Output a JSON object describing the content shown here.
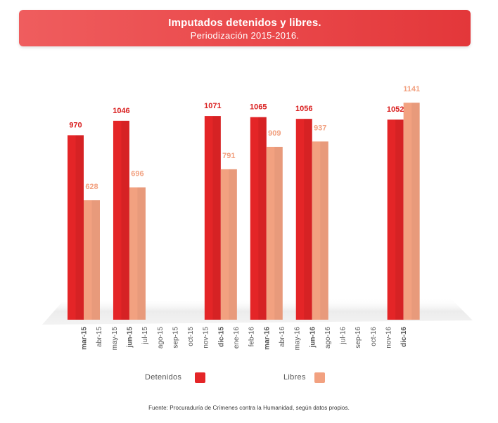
{
  "header": {
    "title": "Imputados detenidos y libres.",
    "subtitle": "Periodización 2015-2016."
  },
  "colors": {
    "detenidos": "#e42527",
    "libres": "#f2a180",
    "detenidos_label": "#d91e1e",
    "libres_label": "#f2a180"
  },
  "chart_data": {
    "type": "bar",
    "title": "Imputados detenidos y libres.",
    "subtitle": "Periodización 2015-2016.",
    "categories": [
      "mar-15",
      "abr-15",
      "may-15",
      "jun-15",
      "jul-15",
      "ago-15",
      "sep-15",
      "oct-15",
      "nov-15",
      "dic-15",
      "ene-16",
      "feb-16",
      "mar-16",
      "abr-16",
      "may-16",
      "jun-16",
      "ago-16",
      "jul-16",
      "sep-16",
      "oct-16",
      "nov-16",
      "dic-16"
    ],
    "bold_categories": [
      "mar-15",
      "jun-15",
      "dic-15",
      "mar-16",
      "jun-16",
      "dic-16"
    ],
    "series": [
      {
        "name": "Detenidos",
        "color": "#e42527",
        "values": [
          970,
          null,
          null,
          1046,
          null,
          null,
          null,
          null,
          null,
          1071,
          null,
          null,
          1065,
          null,
          null,
          1056,
          null,
          null,
          null,
          null,
          null,
          1052
        ]
      },
      {
        "name": "Libres",
        "color": "#f2a180",
        "values": [
          628,
          null,
          null,
          696,
          null,
          null,
          null,
          null,
          null,
          791,
          null,
          null,
          909,
          null,
          null,
          937,
          null,
          null,
          null,
          null,
          null,
          1141
        ]
      }
    ],
    "ylim": [
      0,
      1160
    ],
    "xlabel": "",
    "ylabel": "",
    "grid": false,
    "legend": "bottom"
  },
  "legend": {
    "detenidos_label": "Detenidos",
    "libres_label": "Libres"
  },
  "footer": {
    "source": "Fuente: Procuraduría de Crímenes contra la Humanidad, según datos propios."
  }
}
